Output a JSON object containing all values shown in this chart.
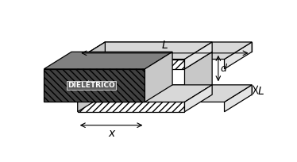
{
  "bg_color": "#ffffff",
  "lc": "#000000",
  "lw": 0.9,
  "label_L_top": "L",
  "label_L_bottom": "L",
  "label_x": "x",
  "label_d": "d",
  "label_dieletrico": "DIELÉTRICO",
  "plate_hatch_color": "#888888",
  "diel_hatch_color": "#000000",
  "gap_fill": "#c8c8c8",
  "plate_top_fill": "#d8d8d8",
  "plate_side_fill": "#e4e4e4",
  "diel_top_fill": "#a0a0a0"
}
